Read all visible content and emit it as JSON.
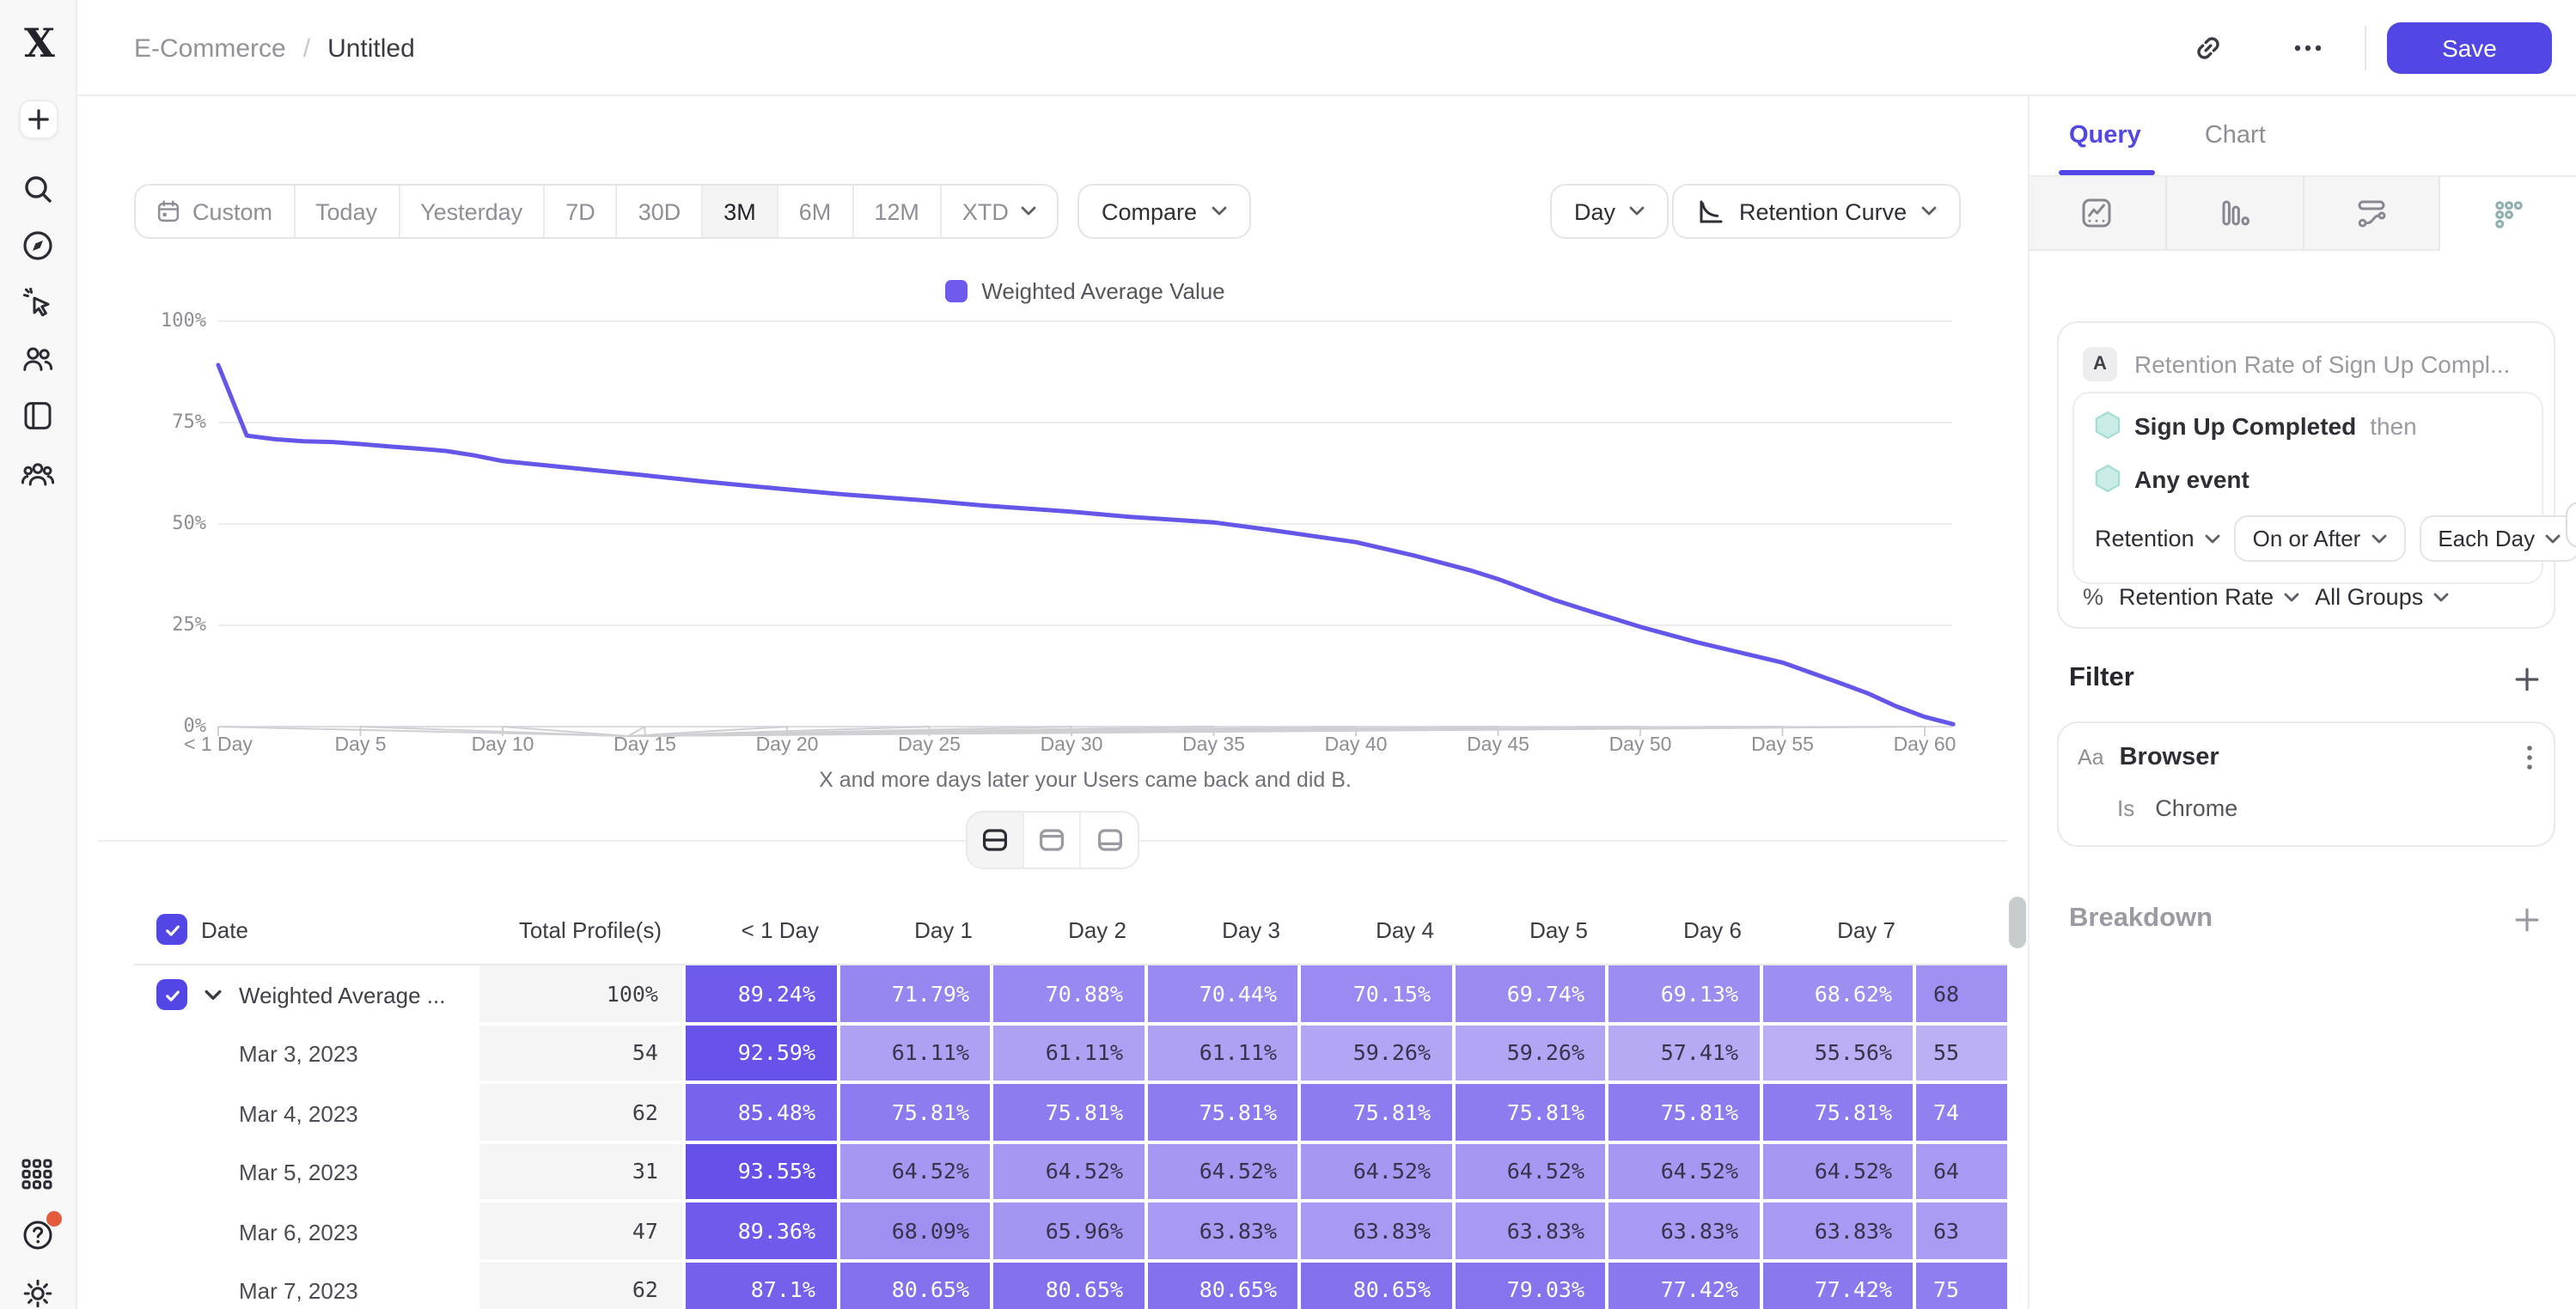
{
  "app": {
    "logo_letter": "X"
  },
  "header": {
    "breadcrumb": {
      "section": "E-Commerce",
      "separator": "/",
      "page": "Untitled"
    },
    "save_label": "Save"
  },
  "toolbar": {
    "ranges": [
      "Custom",
      "Today",
      "Yesterday",
      "7D",
      "30D",
      "3M",
      "6M",
      "12M",
      "XTD"
    ],
    "active_range": "3M",
    "compare_label": "Compare",
    "granularity_label": "Day",
    "chart_type_label": "Retention Curve"
  },
  "chart_data": {
    "type": "line",
    "legend": [
      "Weighted Average Value"
    ],
    "legend_position": "top",
    "grid": true,
    "xlabel": "X and more days later your Users came back and did B.",
    "y_tick_labels": [
      "100%",
      "75%",
      "50%",
      "25%",
      "0%"
    ],
    "ylim": [
      0,
      100
    ],
    "x_tick_labels": [
      "< 1 Day",
      "Day 5",
      "Day 10",
      "Day 15",
      "Day 20",
      "Day 25",
      "Day 30",
      "Day 35",
      "Day 40",
      "Day 45",
      "Day 50",
      "Day 55",
      "Day 60"
    ],
    "x_tick_days": [
      0,
      5,
      10,
      15,
      20,
      25,
      30,
      35,
      40,
      45,
      50,
      55,
      60
    ],
    "xlim_days": [
      0,
      61
    ],
    "series": [
      {
        "name": "Weighted Average Value",
        "color": "#6356e9",
        "points": [
          [
            0,
            89.2
          ],
          [
            1,
            71.8
          ],
          [
            2,
            70.9
          ],
          [
            3,
            70.4
          ],
          [
            4,
            70.2
          ],
          [
            5,
            69.7
          ],
          [
            6,
            69.1
          ],
          [
            7,
            68.6
          ],
          [
            8,
            68.0
          ],
          [
            9,
            66.9
          ],
          [
            10,
            65.5
          ],
          [
            12,
            64.1
          ],
          [
            15,
            62.0
          ],
          [
            17,
            60.5
          ],
          [
            20,
            58.5
          ],
          [
            22,
            57.3
          ],
          [
            25,
            55.7
          ],
          [
            27,
            54.5
          ],
          [
            30,
            53.0
          ],
          [
            32,
            51.8
          ],
          [
            35,
            50.4
          ],
          [
            37,
            48.5
          ],
          [
            40,
            45.5
          ],
          [
            42,
            42.3
          ],
          [
            44,
            38.6
          ],
          [
            45,
            36.4
          ],
          [
            47,
            31.2
          ],
          [
            48,
            29.0
          ],
          [
            50,
            24.6
          ],
          [
            52,
            20.8
          ],
          [
            55,
            15.8
          ],
          [
            57,
            10.8
          ],
          [
            58,
            8.2
          ],
          [
            59,
            5.0
          ],
          [
            60,
            2.4
          ],
          [
            61,
            0.6
          ]
        ]
      }
    ]
  },
  "view_toggle": {
    "options": [
      "split-view",
      "table-only-view",
      "chart-only-view"
    ],
    "active": "split-view"
  },
  "table": {
    "columns": [
      "Date",
      "Total Profile(s)",
      "< 1 Day",
      "Day 1",
      "Day 2",
      "Day 3",
      "Day 4",
      "Day 5",
      "Day 6",
      "Day 7",
      ""
    ],
    "header_checked": true,
    "rows": [
      {
        "label": "Weighted Average ...",
        "checked": true,
        "expandable": true,
        "total": "100%",
        "values": [
          "89.24%",
          "71.79%",
          "70.88%",
          "70.44%",
          "70.15%",
          "69.74%",
          "69.13%",
          "68.62%"
        ],
        "day8": {
          "text": "68",
          "v": 68
        }
      },
      {
        "label": "Mar 3, 2023",
        "total": "54",
        "values": [
          "92.59%",
          "61.11%",
          "61.11%",
          "61.11%",
          "59.26%",
          "59.26%",
          "57.41%",
          "55.56%"
        ],
        "day8": {
          "text": "55",
          "v": 55
        }
      },
      {
        "label": "Mar 4, 2023",
        "total": "62",
        "values": [
          "85.48%",
          "75.81%",
          "75.81%",
          "75.81%",
          "75.81%",
          "75.81%",
          "75.81%",
          "75.81%"
        ],
        "day8": {
          "text": "74",
          "v": 74
        }
      },
      {
        "label": "Mar 5, 2023",
        "total": "31",
        "values": [
          "93.55%",
          "64.52%",
          "64.52%",
          "64.52%",
          "64.52%",
          "64.52%",
          "64.52%",
          "64.52%"
        ],
        "day8": {
          "text": "64",
          "v": 64
        }
      },
      {
        "label": "Mar 6, 2023",
        "total": "47",
        "values": [
          "89.36%",
          "68.09%",
          "65.96%",
          "63.83%",
          "63.83%",
          "63.83%",
          "63.83%",
          "63.83%"
        ],
        "day8": {
          "text": "63",
          "v": 63
        }
      },
      {
        "label": "Mar 7, 2023",
        "total": "62",
        "values": [
          "87.1%",
          "80.65%",
          "80.65%",
          "80.65%",
          "80.65%",
          "79.03%",
          "77.42%",
          "77.42%"
        ],
        "day8": {
          "text": "75",
          "v": 75
        }
      }
    ]
  },
  "side_panel": {
    "tabs": [
      "Query",
      "Chart"
    ],
    "active_tab": "Query",
    "icon_tabs": [
      "insights-icon",
      "bar-chart-icon",
      "flows-icon",
      "retention-icon"
    ],
    "active_icon_tab": "retention-icon",
    "query": {
      "badge": "A",
      "title": "Retention Rate of Sign Up Compl...",
      "first_event": "Sign Up Completed",
      "then_label": "then",
      "second_event": "Any event",
      "retention_label": "Retention",
      "on_or_after_label": "On or After",
      "each_day_label": "Each Day",
      "measure_symbol": "%",
      "measure_label": "Retention Rate",
      "groups_label": "All Groups"
    },
    "filter": {
      "heading": "Filter",
      "type_label": "Aa",
      "property": "Browser",
      "operator": "Is",
      "value": "Chrome"
    },
    "breakdown_heading": "Breakdown"
  },
  "sidebar": {
    "top_icons": [
      "plus-icon",
      "search-icon",
      "compass-icon",
      "cursor-click-icon",
      "users-icon",
      "notebook-icon",
      "team-icon"
    ],
    "bottom_icons": [
      "apps-grid-icon",
      "help-icon",
      "settings-icon"
    ],
    "help_has_notification": true
  },
  "colors": {
    "accent": "#5247e5",
    "line": "#6356e9",
    "heat_low": "#c7bcf7",
    "heat_high": "#624de9",
    "teal_event": "#c9ece7"
  }
}
